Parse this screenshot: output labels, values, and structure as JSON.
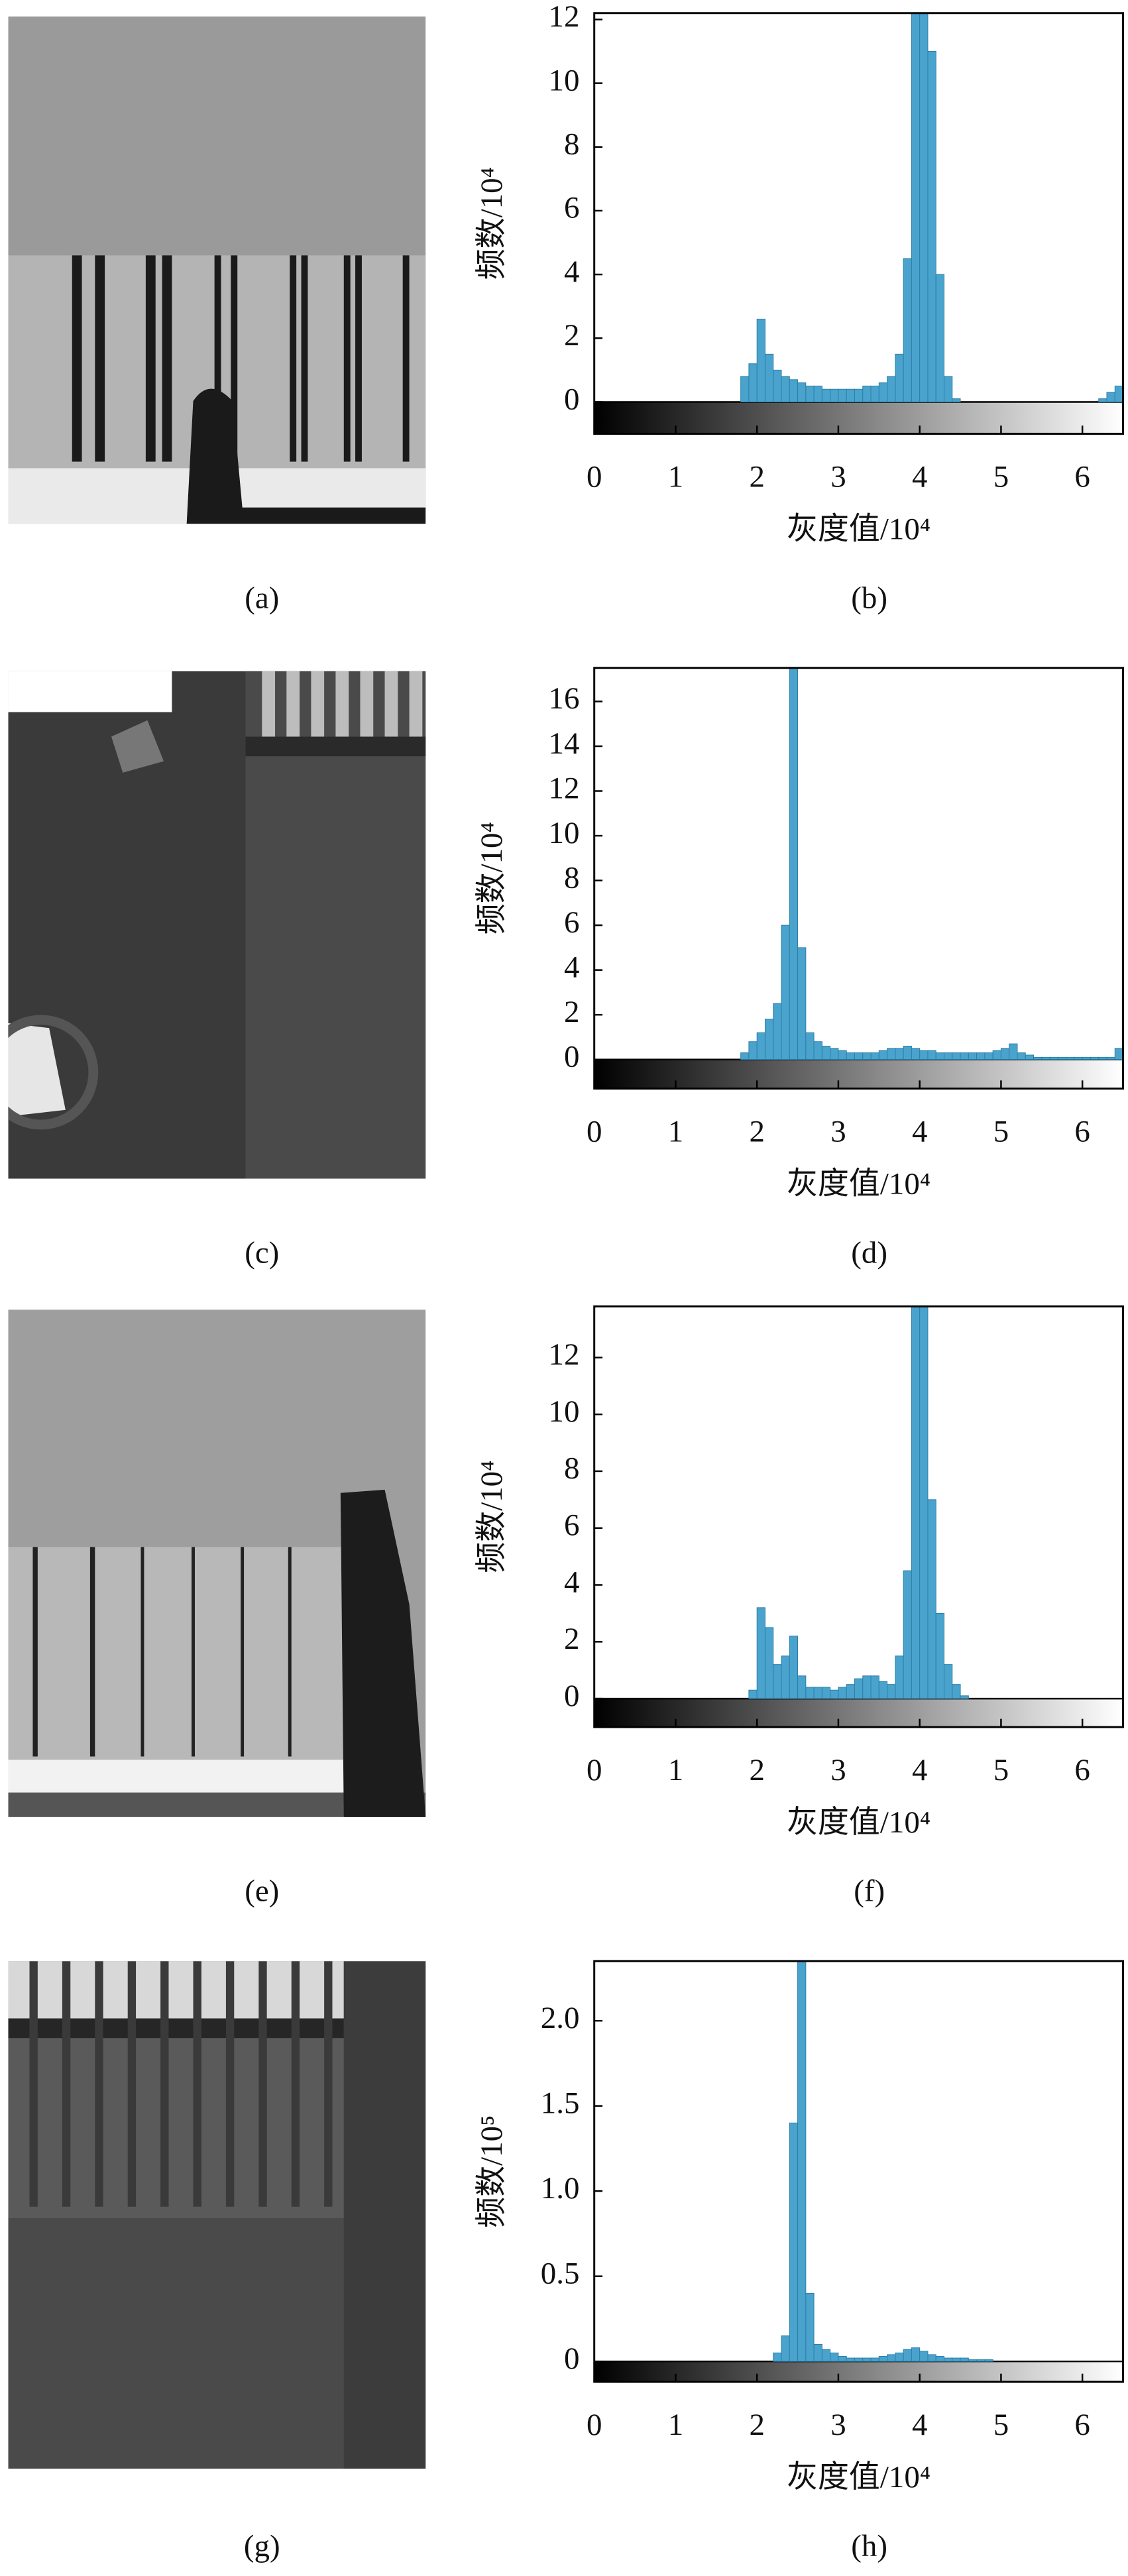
{
  "images": [
    {
      "caption": "(a)"
    },
    {
      "caption": "(c)"
    },
    {
      "caption": "(e)"
    },
    {
      "caption": "(g)"
    }
  ],
  "chart_data": [
    {
      "type": "histogram",
      "caption": "(b)",
      "xlabel": "灰度值/10⁴",
      "ylabel": "频数/10⁴",
      "color": "#4aa3cc",
      "bins": [
        1.8,
        1.9,
        2.0,
        2.1,
        2.2,
        2.3,
        2.4,
        2.5,
        2.6,
        2.7,
        2.8,
        2.9,
        3.0,
        3.1,
        3.2,
        3.3,
        3.4,
        3.5,
        3.6,
        3.7,
        3.8,
        3.9,
        4.0,
        4.1,
        4.2,
        4.3,
        4.4,
        4.5,
        4.6,
        4.7,
        4.8,
        4.9,
        5.0,
        5.1,
        5.2,
        5.3,
        5.4,
        5.5,
        5.6,
        5.7,
        5.8,
        5.9,
        6.0,
        6.1,
        6.2,
        6.3,
        6.4,
        6.5
      ],
      "values": [
        0.8,
        1.2,
        2.6,
        1.5,
        1.0,
        0.8,
        0.7,
        0.6,
        0.5,
        0.5,
        0.4,
        0.4,
        0.4,
        0.4,
        0.4,
        0.5,
        0.5,
        0.6,
        0.8,
        1.5,
        4.5,
        12.2,
        12.2,
        11,
        4,
        0.8,
        0.1,
        0,
        0,
        0,
        0,
        0,
        0,
        0,
        0,
        0,
        0,
        0,
        0,
        0,
        0,
        0,
        0,
        0,
        0.1,
        0.3,
        0.5
      ],
      "xlim": [
        0,
        6.5
      ],
      "xticks": [
        0,
        1,
        2,
        3,
        4,
        5,
        6
      ],
      "ylim": [
        -1,
        12.2
      ],
      "yticks": [
        0,
        2,
        4,
        6,
        8,
        10,
        12
      ]
    },
    {
      "type": "histogram",
      "caption": "(d)",
      "xlabel": "灰度值/10⁴",
      "ylabel": "频数/10⁴",
      "color": "#4aa3cc",
      "bins": [
        1.8,
        1.9,
        2.0,
        2.1,
        2.2,
        2.3,
        2.4,
        2.5,
        2.6,
        2.7,
        2.8,
        2.9,
        3.0,
        3.1,
        3.2,
        3.3,
        3.4,
        3.5,
        3.6,
        3.7,
        3.8,
        3.9,
        4.0,
        4.1,
        4.2,
        4.3,
        4.4,
        4.5,
        4.6,
        4.7,
        4.8,
        4.9,
        5.0,
        5.1,
        5.2,
        5.3,
        5.4,
        5.5,
        5.6,
        5.7,
        5.8,
        5.9,
        6.0,
        6.1,
        6.2,
        6.3,
        6.4,
        6.5
      ],
      "values": [
        0.3,
        0.8,
        1.2,
        1.8,
        2.5,
        6,
        17.5,
        5,
        1.2,
        0.8,
        0.6,
        0.5,
        0.4,
        0.3,
        0.3,
        0.3,
        0.3,
        0.4,
        0.5,
        0.5,
        0.6,
        0.5,
        0.4,
        0.4,
        0.3,
        0.3,
        0.3,
        0.3,
        0.3,
        0.3,
        0.3,
        0.4,
        0.5,
        0.7,
        0.3,
        0.2,
        0.1,
        0.1,
        0.1,
        0.1,
        0.1,
        0.1,
        0.1,
        0.1,
        0.1,
        0.1,
        0.5
      ],
      "xlim": [
        0,
        6.5
      ],
      "xticks": [
        0,
        1,
        2,
        3,
        4,
        5,
        6
      ],
      "ylim": [
        -1.3,
        17.5
      ],
      "yticks": [
        0,
        2,
        4,
        6,
        8,
        10,
        12,
        14,
        16
      ]
    },
    {
      "type": "histogram",
      "caption": "(f)",
      "xlabel": "灰度值/10⁴",
      "ylabel": "频数/10⁴",
      "color": "#4aa3cc",
      "bins": [
        1.8,
        1.9,
        2.0,
        2.1,
        2.2,
        2.3,
        2.4,
        2.5,
        2.6,
        2.7,
        2.8,
        2.9,
        3.0,
        3.1,
        3.2,
        3.3,
        3.4,
        3.5,
        3.6,
        3.7,
        3.8,
        3.9,
        4.0,
        4.1,
        4.2,
        4.3,
        4.4,
        4.5,
        4.6,
        4.7,
        4.8,
        4.9,
        5.0,
        5.1,
        5.2,
        5.3,
        5.4,
        5.5,
        5.6,
        5.7,
        5.8,
        5.9,
        6.0,
        6.1,
        6.2,
        6.3,
        6.4,
        6.5
      ],
      "values": [
        0,
        0.3,
        3.2,
        2.5,
        1.2,
        1.5,
        2.2,
        0.8,
        0.4,
        0.4,
        0.4,
        0.3,
        0.4,
        0.5,
        0.7,
        0.8,
        0.8,
        0.6,
        0.5,
        1.5,
        4.5,
        13.8,
        13.8,
        7,
        3,
        1.2,
        0.5,
        0.1,
        0,
        0,
        0,
        0,
        0,
        0,
        0,
        0,
        0,
        0,
        0,
        0,
        0,
        0,
        0,
        0,
        0,
        0,
        0
      ],
      "xlim": [
        0,
        6.5
      ],
      "xticks": [
        0,
        1,
        2,
        3,
        4,
        5,
        6
      ],
      "ylim": [
        -1,
        13.8
      ],
      "yticks": [
        0,
        2,
        4,
        6,
        8,
        10,
        12
      ]
    },
    {
      "type": "histogram",
      "caption": "(h)",
      "xlabel": "灰度值/10⁴",
      "ylabel": "频数/10⁵",
      "color": "#4aa3cc",
      "bins": [
        1.8,
        1.9,
        2.0,
        2.1,
        2.2,
        2.3,
        2.4,
        2.5,
        2.6,
        2.7,
        2.8,
        2.9,
        3.0,
        3.1,
        3.2,
        3.3,
        3.4,
        3.5,
        3.6,
        3.7,
        3.8,
        3.9,
        4.0,
        4.1,
        4.2,
        4.3,
        4.4,
        4.5,
        4.6,
        4.7,
        4.8,
        4.9,
        5.0,
        5.1,
        5.2,
        5.3,
        5.4,
        5.5,
        5.6,
        5.7,
        5.8,
        5.9,
        6.0,
        6.1,
        6.2,
        6.3,
        6.4,
        6.5
      ],
      "values": [
        0,
        0,
        0,
        0,
        0.05,
        0.15,
        1.4,
        2.35,
        0.4,
        0.1,
        0.07,
        0.05,
        0.03,
        0.02,
        0.02,
        0.02,
        0.02,
        0.03,
        0.04,
        0.05,
        0.07,
        0.08,
        0.06,
        0.04,
        0.03,
        0.02,
        0.02,
        0.02,
        0.01,
        0.01,
        0.01,
        0,
        0,
        0,
        0,
        0,
        0,
        0,
        0,
        0,
        0,
        0,
        0,
        0,
        0,
        0,
        0
      ],
      "xlim": [
        0,
        6.5
      ],
      "xticks": [
        0,
        1,
        2,
        3,
        4,
        5,
        6
      ],
      "ylim": [
        -0.12,
        2.35
      ],
      "yticks": [
        0,
        0.5,
        {
          "value": 1,
          "label": "1.0"
        },
        1.5,
        {
          "value": 2,
          "label": "2.0"
        }
      ]
    }
  ]
}
